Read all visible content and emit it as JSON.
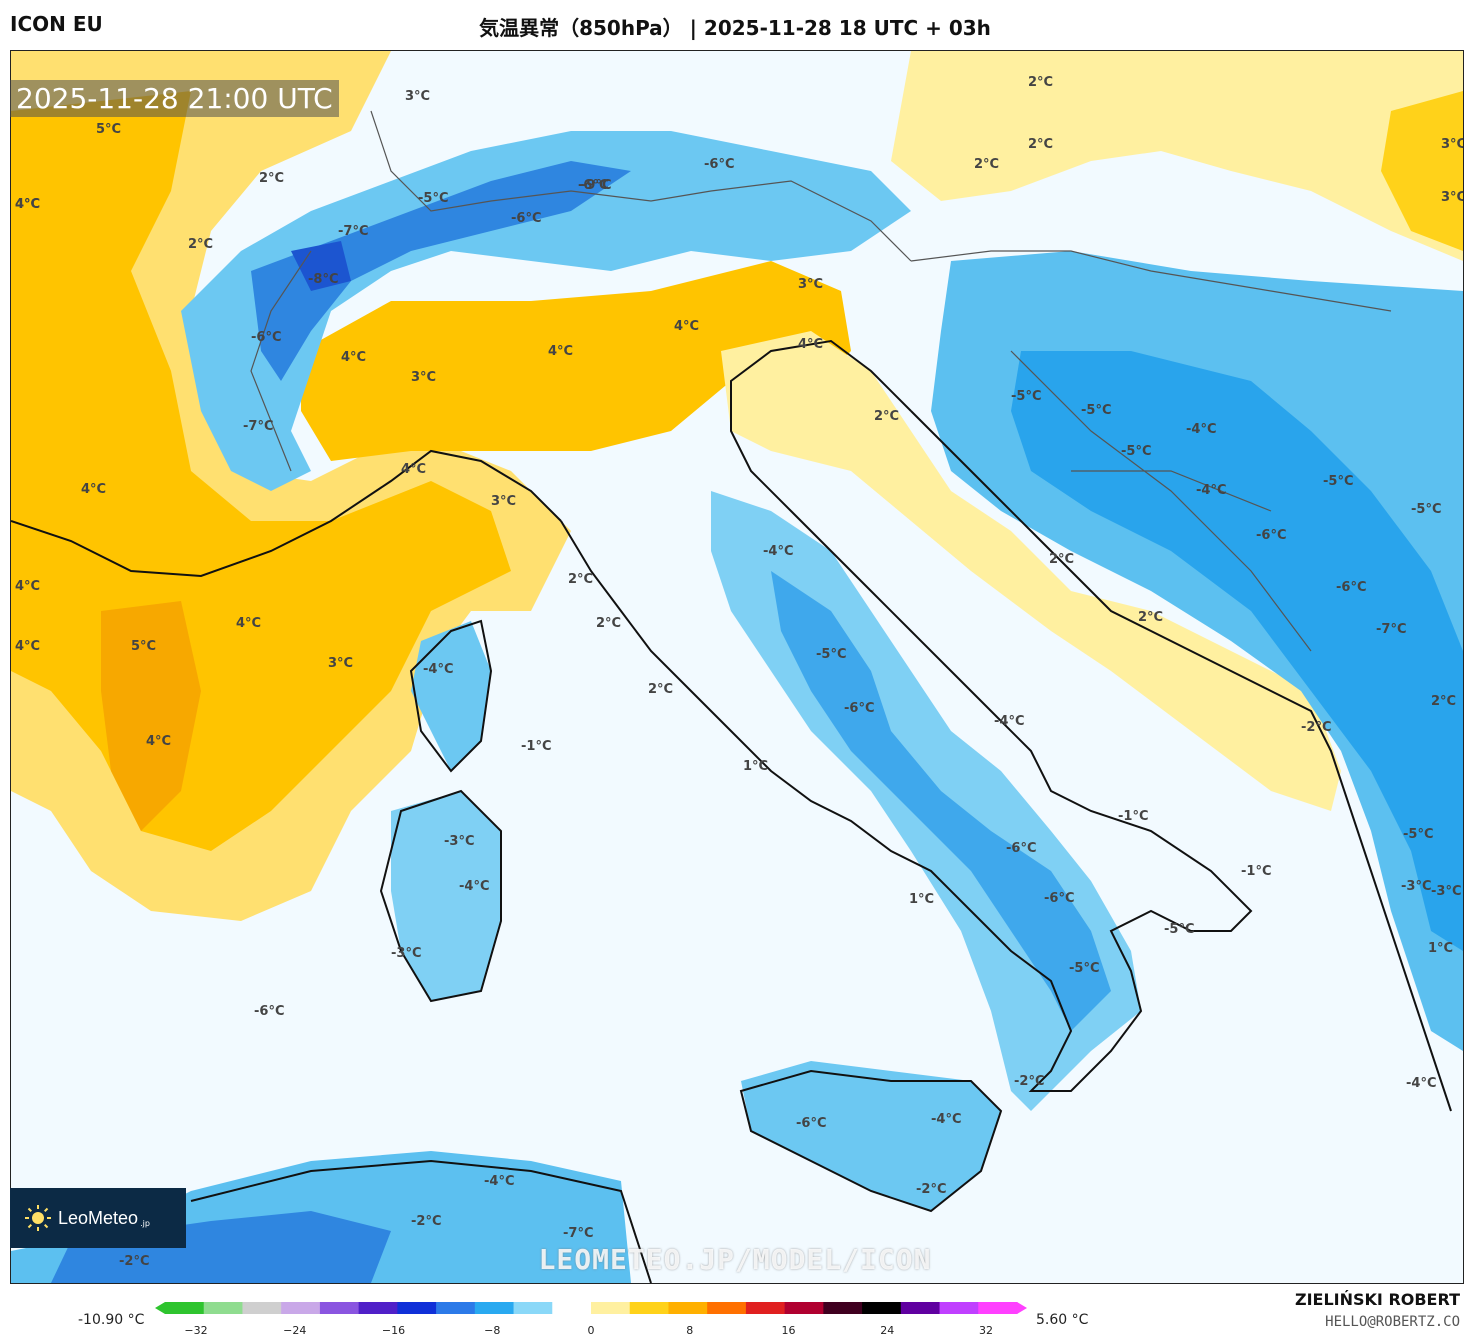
{
  "header": {
    "model": "ICON EU",
    "title": "気温異常（850hPa） | 2025-11-28 18 UTC + 03h"
  },
  "map": {
    "timestamp": "2025-11-28 21:00 UTC",
    "watermark": "LEOMETEO.JP/MODEL/ICON",
    "labels": [
      {
        "text": "3°C"
      },
      {
        "text": "5°C"
      },
      {
        "text": "4°C"
      },
      {
        "text": "2°C"
      },
      {
        "text": "2°C"
      },
      {
        "text": "-5°C"
      },
      {
        "text": "-7°C"
      },
      {
        "text": "-8°C"
      },
      {
        "text": "-6°C"
      },
      {
        "text": "-9°C"
      },
      {
        "text": "-6°C"
      },
      {
        "text": "-6°C"
      },
      {
        "text": "2°C"
      },
      {
        "text": "2°C"
      },
      {
        "text": "2°C"
      },
      {
        "text": "3°C"
      },
      {
        "text": "3°C"
      },
      {
        "text": "3°C"
      },
      {
        "text": "4°C"
      },
      {
        "text": "4°C"
      },
      {
        "text": "4°C"
      },
      {
        "text": "4°C"
      },
      {
        "text": "3°C"
      },
      {
        "text": "4°C"
      },
      {
        "text": "-6°C"
      },
      {
        "text": "-7°C"
      },
      {
        "text": "2°C"
      },
      {
        "text": "4°C"
      },
      {
        "text": "3°C"
      },
      {
        "text": "4°C"
      },
      {
        "text": "4°C"
      },
      {
        "text": "4°C"
      },
      {
        "text": "5°C"
      },
      {
        "text": "4°C"
      },
      {
        "text": "3°C"
      },
      {
        "text": "4°C"
      },
      {
        "text": "-4°C"
      },
      {
        "text": "2°C"
      },
      {
        "text": "2°C"
      },
      {
        "text": "2°C"
      },
      {
        "text": "1°C"
      },
      {
        "text": "-1°C"
      },
      {
        "text": "-4°C"
      },
      {
        "text": "-5°C"
      },
      {
        "text": "-6°C"
      },
      {
        "text": "-4°C"
      },
      {
        "text": "-5°C"
      },
      {
        "text": "-5°C"
      },
      {
        "text": "-4°C"
      },
      {
        "text": "-5°C"
      },
      {
        "text": "-4°C"
      },
      {
        "text": "-6°C"
      },
      {
        "text": "-5°C"
      },
      {
        "text": "-5°C"
      },
      {
        "text": "-6°C"
      },
      {
        "text": "-7°C"
      },
      {
        "text": "2°C"
      },
      {
        "text": "2°C"
      },
      {
        "text": "2°C"
      },
      {
        "text": "-2°C"
      },
      {
        "text": "-1°C"
      },
      {
        "text": "-1°C"
      },
      {
        "text": "-5°C"
      },
      {
        "text": "-6°C"
      },
      {
        "text": "-6°C"
      },
      {
        "text": "-5°C"
      },
      {
        "text": "-5°C"
      },
      {
        "text": "-3°C"
      },
      {
        "text": "-3°C"
      },
      {
        "text": "-3°C"
      },
      {
        "text": "-4°C"
      },
      {
        "text": "-3°C"
      },
      {
        "text": "1°C"
      },
      {
        "text": "1°C"
      },
      {
        "text": "-6°C"
      },
      {
        "text": "-2°C"
      },
      {
        "text": "-4°C"
      },
      {
        "text": "-6°C"
      },
      {
        "text": "-4°C"
      },
      {
        "text": "-2°C"
      },
      {
        "text": "-4°C"
      },
      {
        "text": "-2°C"
      },
      {
        "text": "-7°C"
      },
      {
        "text": "-2°C"
      }
    ]
  },
  "logo": {
    "name": "LeoMeteo",
    "suffix": ".jp",
    "icon": "sun-icon"
  },
  "colorbar": {
    "min_label": "-10.90 °C",
    "max_label": "5.60 °C",
    "ticks": [
      "−32",
      "−24",
      "−16",
      "−8",
      "0",
      "8",
      "16",
      "24",
      "32"
    ],
    "colors": [
      "#2ec42e",
      "#8fdc8f",
      "#cfcfcf",
      "#c9a8e8",
      "#8a55e0",
      "#5020c8",
      "#1030d8",
      "#2c7ae8",
      "#29a9f0",
      "#8ad8f8",
      "#ffffff",
      "#fff0a0",
      "#ffd21a",
      "#ffb000",
      "#ff7000",
      "#e02020",
      "#b00030",
      "#400020",
      "#000000",
      "#6000a0",
      "#c040ff",
      "#ff40ff"
    ]
  },
  "footer": {
    "author": "ZIELIŃSKI ROBERT",
    "email": "HELLO@ROBERTZ.CO"
  }
}
